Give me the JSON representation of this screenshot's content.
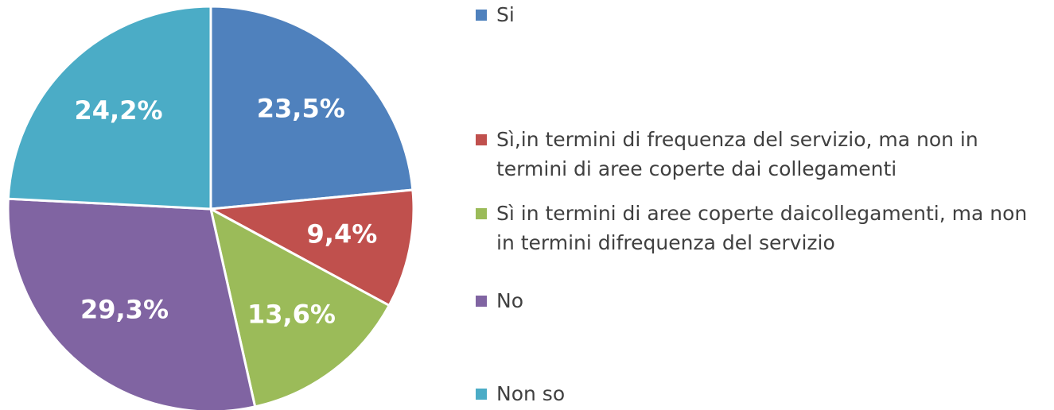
{
  "chart_data": {
    "type": "pie",
    "categories": [
      "Si",
      "Sì,in termini di frequenza del servizio, ma non in termini di aree coperte dai collegamenti",
      "Sì in termini di aree coperte daicollegamenti, ma non in termini difrequenza del servizio",
      "No",
      "Non so"
    ],
    "values": [
      23.5,
      9.4,
      13.6,
      29.3,
      24.2
    ],
    "value_labels": [
      "23,5%",
      "9,4%",
      "13,6%",
      "29,3%",
      "24,2%"
    ],
    "colors": [
      "#4f81bd",
      "#c0504d",
      "#9bbb59",
      "#8064a2",
      "#4bacc6"
    ],
    "legend": "right"
  }
}
